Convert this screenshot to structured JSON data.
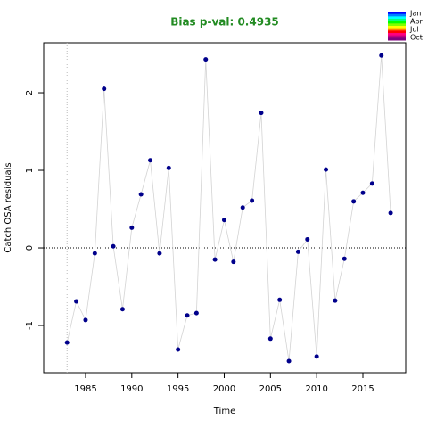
{
  "chart_data": {
    "type": "line",
    "title": "Bias p-val: 0.4935",
    "title_color": "#228b22",
    "x_label": "Time",
    "y_label": "Catch OSA residuals",
    "x": [
      1983,
      1984,
      1985,
      1986,
      1987,
      1988,
      1989,
      1990,
      1991,
      1992,
      1993,
      1994,
      1995,
      1996,
      1997,
      1998,
      1999,
      2000,
      2001,
      2002,
      2003,
      2004,
      2005,
      2006,
      2007,
      2008,
      2009,
      2010,
      2011,
      2012,
      2013,
      2014,
      2015,
      2016,
      2017,
      2018
    ],
    "series": [
      {
        "name": "Catch OSA residuals",
        "color": "#00008b",
        "line_color": "#d3d3d3",
        "values": [
          -1.22,
          -0.69,
          -0.93,
          -0.07,
          2.05,
          0.02,
          -0.79,
          0.26,
          0.69,
          1.13,
          -0.07,
          1.03,
          -1.31,
          -0.87,
          -0.84,
          2.43,
          -0.15,
          0.36,
          -0.18,
          0.52,
          0.61,
          1.74,
          -1.17,
          -0.67,
          -1.46,
          -0.05,
          0.11,
          -1.4,
          1.01,
          -0.68,
          -0.14,
          0.6,
          0.71,
          0.83,
          2.48,
          0.45
        ]
      }
    ],
    "xlim": [
      1980.47,
      2019.63
    ],
    "ylim": [
      -1.609,
      2.644
    ],
    "xticks": [
      1985,
      1990,
      1995,
      2000,
      2005,
      2010,
      2015
    ],
    "yticks": [
      -1,
      0,
      1,
      2
    ],
    "hline": 0,
    "vline": 1983,
    "legend_labels": [
      "Jan",
      "Apr",
      "Jul",
      "Oct"
    ],
    "legend_colors": [
      "#0000ff",
      "#0080ff",
      "#00ffff",
      "#00ff80",
      "#00ff00",
      "#80ff00",
      "#ffff00",
      "#ff8000",
      "#ff0000",
      "#ff0080",
      "#c00080",
      "#800080"
    ]
  }
}
